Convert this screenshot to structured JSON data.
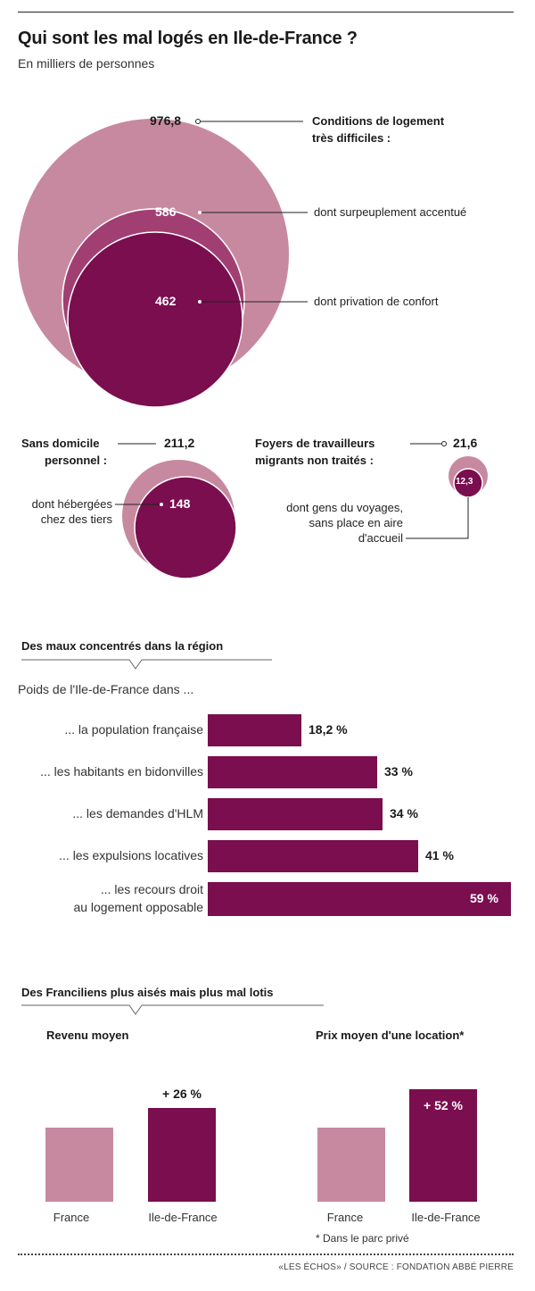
{
  "header": {
    "title": "Qui sont les mal logés en Ile-de-France ?",
    "subtitle": "En milliers de personnes"
  },
  "colors": {
    "light": "#c7899f",
    "mid": "#a13f73",
    "dark": "#7a0e4f",
    "text": "#1a1a1a"
  },
  "circles": {
    "main": {
      "total_value": "976,8",
      "total_label_1": "Conditions de logement",
      "total_label_2": "très difficiles :",
      "mid_value": "586",
      "mid_label": "dont surpeuplement accentué",
      "inner_value": "462",
      "inner_label": "dont privation de confort"
    },
    "sdp": {
      "label_1": "Sans domicile",
      "label_2": "personnel :",
      "value": "211,2",
      "inner_label_1": "dont hébergées",
      "inner_label_2": "chez des tiers",
      "inner_value": "148"
    },
    "foyers": {
      "label_1": "Foyers de travailleurs",
      "label_2": "migrants non traités :",
      "value": "21,6",
      "inner_value": "12,3",
      "inner_label_1": "dont gens du voyages,",
      "inner_label_2": "sans place en aire",
      "inner_label_3": "d'accueil"
    }
  },
  "section2": {
    "title": "Des maux concentrés dans la région",
    "intro": "Poids de l'Ile-de-France dans ..."
  },
  "section3": {
    "title": "Des Franciliens plus aisés mais plus mal lotis",
    "note": "* Dans le parc privé"
  },
  "footer": {
    "source": "«LES ÉCHOS» / SOURCE : FONDATION ABBÉ PIERRE"
  },
  "chart_data": [
    {
      "type": "bubble",
      "units": "En milliers de personnes",
      "groups": [
        {
          "name": "Conditions de logement très difficiles :",
          "value": 976.8,
          "sub": [
            {
              "name": "dont surpeuplement accentué",
              "value": 586
            },
            {
              "name": "dont privation de confort",
              "value": 462
            }
          ]
        },
        {
          "name": "Sans domicile personnel :",
          "value": 211.2,
          "sub": [
            {
              "name": "dont hébergées chez des tiers",
              "value": 148
            }
          ]
        },
        {
          "name": "Foyers de travailleurs migrants non traités :",
          "value": 21.6,
          "sub": [
            {
              "name": "dont gens du voyages, sans place en aire d'accueil",
              "value": 12.3
            }
          ]
        }
      ]
    },
    {
      "type": "bar",
      "orientation": "horizontal",
      "title": "Des maux concentrés dans la région",
      "categories": [
        [
          "... la population française"
        ],
        [
          "... les habitants en bidonvilles"
        ],
        [
          "... les demandes d'HLM"
        ],
        [
          "... les expulsions locatives"
        ],
        [
          "... les recours droit",
          "au logement opposable"
        ]
      ],
      "values": [
        18.2,
        33,
        34,
        41,
        59
      ],
      "value_labels": [
        "18,2 %",
        "33 %",
        "34 %",
        "41 %",
        "59 %"
      ],
      "xlim": [
        0,
        59
      ]
    },
    {
      "type": "bar",
      "title": "Revenu moyen",
      "categories": [
        "France",
        "Ile-de-France"
      ],
      "values": [
        100,
        126
      ],
      "annotation": "+ 26 %"
    },
    {
      "type": "bar",
      "title": "Prix moyen d'une location*",
      "categories": [
        "France",
        "Ile-de-France"
      ],
      "values": [
        100,
        152
      ],
      "annotation": "+ 52 %"
    }
  ]
}
